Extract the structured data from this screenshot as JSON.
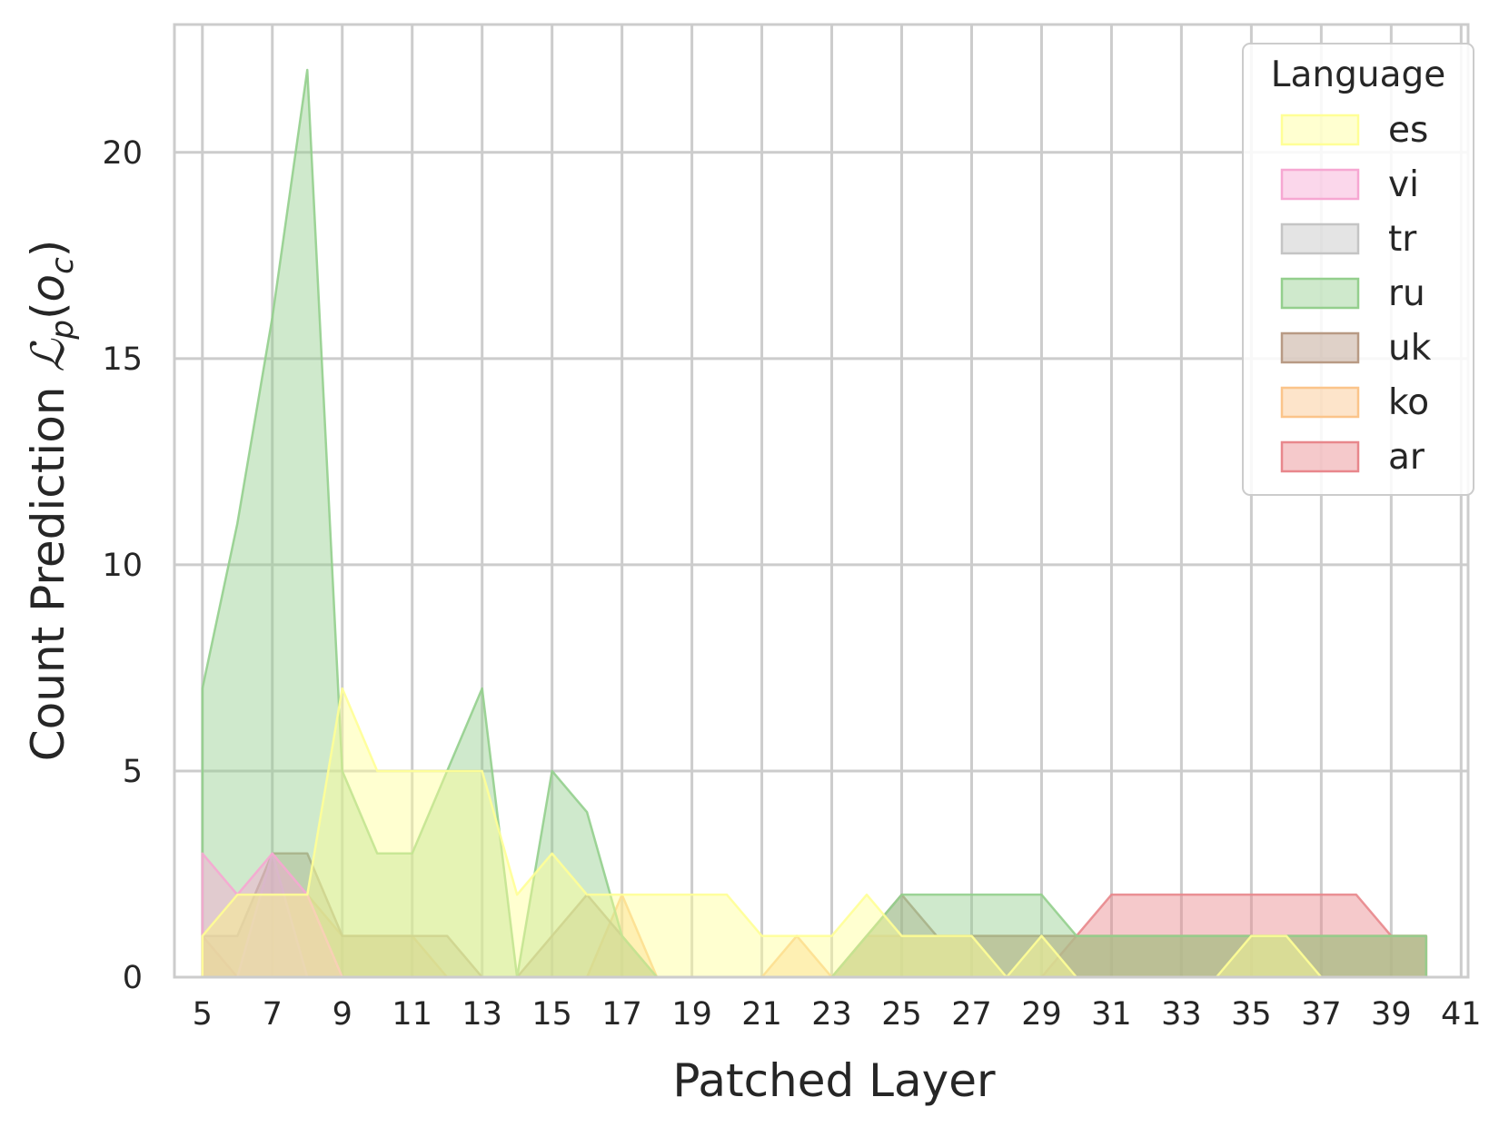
{
  "chart_data": {
    "type": "area",
    "title": "",
    "xlabel": "Patched Layer",
    "ylabel": "Count Prediction ℒp(oc)",
    "ylabel_parts": {
      "text": "Count Prediction ",
      "math_L": "ℒ",
      "sub_p": "p",
      "paren_open": "(",
      "o": "o",
      "sub_c": "c",
      "paren_close": ")"
    },
    "xlim": [
      4.2,
      41.2
    ],
    "ylim": [
      0,
      23.1
    ],
    "xticks": [
      5,
      7,
      9,
      11,
      13,
      15,
      17,
      19,
      21,
      23,
      25,
      27,
      29,
      31,
      33,
      35,
      37,
      39,
      41
    ],
    "yticks": [
      0,
      5,
      10,
      15,
      20
    ],
    "grid": true,
    "legend": {
      "title": "Language",
      "position": "top-right"
    },
    "x": [
      5,
      6,
      7,
      8,
      9,
      10,
      11,
      12,
      13,
      14,
      15,
      16,
      17,
      18,
      19,
      20,
      21,
      22,
      23,
      24,
      25,
      26,
      27,
      28,
      29,
      30,
      31,
      32,
      33,
      34,
      35,
      36,
      37,
      38,
      39,
      40
    ],
    "series": [
      {
        "name": "ar",
        "color": "#e8878c",
        "values": [
          1,
          0,
          0,
          0,
          0,
          0,
          0,
          0,
          0,
          0,
          0,
          0,
          0,
          0,
          0,
          0,
          0,
          0,
          0,
          0,
          0,
          0,
          0,
          0,
          0,
          1,
          2,
          2,
          2,
          2,
          2,
          2,
          2,
          2,
          1,
          1
        ]
      },
      {
        "name": "ko",
        "color": "#fbc48a",
        "values": [
          1,
          2,
          2,
          2,
          1,
          1,
          1,
          0,
          0,
          0,
          0,
          0,
          2,
          0,
          0,
          0,
          0,
          1,
          0,
          1,
          1,
          1,
          1,
          1,
          1,
          1,
          1,
          1,
          1,
          1,
          1,
          1,
          1,
          1,
          1,
          1
        ]
      },
      {
        "name": "uk",
        "color": "#b89a84",
        "values": [
          1,
          1,
          3,
          3,
          1,
          1,
          1,
          1,
          0,
          0,
          1,
          2,
          1,
          0,
          0,
          0,
          0,
          0,
          0,
          1,
          2,
          1,
          1,
          1,
          1,
          1,
          1,
          1,
          1,
          1,
          1,
          1,
          1,
          1,
          1,
          1
        ]
      },
      {
        "name": "ru",
        "color": "#94cf8d",
        "values": [
          7,
          11,
          16,
          22,
          5,
          3,
          3,
          5,
          7,
          0,
          5,
          4,
          1,
          0,
          0,
          0,
          0,
          0,
          0,
          1,
          2,
          2,
          2,
          2,
          2,
          1,
          1,
          1,
          1,
          1,
          1,
          1,
          1,
          1,
          1,
          1
        ]
      },
      {
        "name": "tr",
        "color": "#c4c4c4",
        "values": [
          0,
          0,
          3,
          0,
          0,
          0,
          0,
          0,
          0,
          0,
          0,
          0,
          0,
          0,
          0,
          0,
          0,
          0,
          0,
          0,
          0,
          0,
          0,
          0,
          0,
          0,
          0,
          0,
          0,
          0,
          0,
          0,
          0,
          0,
          0,
          0
        ]
      },
      {
        "name": "vi",
        "color": "#f6a7d2",
        "values": [
          3,
          2,
          3,
          2,
          0,
          0,
          0,
          0,
          0,
          0,
          0,
          0,
          0,
          0,
          0,
          0,
          0,
          0,
          0,
          0,
          0,
          0,
          0,
          0,
          0,
          0,
          0,
          0,
          0,
          0,
          0,
          0,
          0,
          0,
          0,
          0
        ]
      },
      {
        "name": "es",
        "color": "#ffff96",
        "values": [
          1,
          2,
          2,
          2,
          7,
          5,
          5,
          5,
          5,
          2,
          3,
          2,
          2,
          2,
          2,
          2,
          1,
          1,
          1,
          2,
          1,
          1,
          1,
          0,
          1,
          0,
          0,
          0,
          0,
          0,
          1,
          1,
          0,
          0,
          0,
          0
        ]
      }
    ],
    "legend_order": [
      "es",
      "vi",
      "tr",
      "ru",
      "uk",
      "ko",
      "ar"
    ]
  }
}
